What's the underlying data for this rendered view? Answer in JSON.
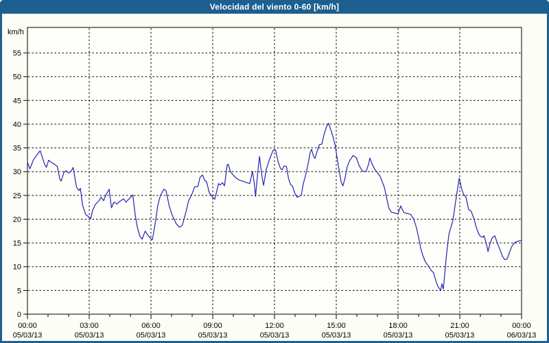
{
  "window": {
    "title": "Velocidad del viento 0-60 [km/h]"
  },
  "colors": {
    "titlebar": "#1d5f90",
    "window_border": "#1d5f90",
    "title_text": "#ffffff",
    "background": "#fcfdf5",
    "plot_bg": "#fefefa",
    "axis": "#000000",
    "grid": "#000000",
    "line": "#2222b2"
  },
  "chart_data": {
    "type": "line",
    "title": "Velocidad del viento 0-60 [km/h]",
    "ylabel": "km/h",
    "grid": {
      "style": "dashed",
      "color": "#000000"
    },
    "legend": "none",
    "y_axis": {
      "min": 0,
      "max": 60.36,
      "tick_step": 5,
      "tick_labels": [
        0,
        5,
        10,
        15,
        20,
        25,
        30,
        35,
        40,
        45,
        50,
        55
      ]
    },
    "x_axis": {
      "start_hour": 0,
      "end_hour": 24,
      "major_tick_hours": 3,
      "minor_tick_hours": 1,
      "major_labels": [
        {
          "time": "00:00",
          "date": "05/03/13"
        },
        {
          "time": "03:00",
          "date": "05/03/13"
        },
        {
          "time": "06:00",
          "date": "05/03/13"
        },
        {
          "time": "09:00",
          "date": "05/03/13"
        },
        {
          "time": "12:00",
          "date": "05/03/13"
        },
        {
          "time": "15:00",
          "date": "05/03/13"
        },
        {
          "time": "18:00",
          "date": "05/03/13"
        },
        {
          "time": "21:00",
          "date": "05/03/13"
        },
        {
          "time": "00:00",
          "date": "06/03/13"
        }
      ]
    },
    "series": [
      {
        "name": "Velocidad del viento [km/h]",
        "color": "#2222b2",
        "x_unit": "hours",
        "points": [
          [
            0.0,
            32.0
          ],
          [
            0.12,
            30.6
          ],
          [
            0.28,
            32.4
          ],
          [
            0.45,
            33.5
          ],
          [
            0.62,
            34.4
          ],
          [
            0.83,
            31.6
          ],
          [
            0.92,
            30.9
          ],
          [
            1.03,
            32.4
          ],
          [
            1.17,
            31.9
          ],
          [
            1.3,
            31.6
          ],
          [
            1.45,
            31.1
          ],
          [
            1.57,
            28.5
          ],
          [
            1.63,
            28.0
          ],
          [
            1.78,
            29.9
          ],
          [
            1.88,
            30.2
          ],
          [
            2.0,
            29.7
          ],
          [
            2.12,
            30.1
          ],
          [
            2.22,
            30.9
          ],
          [
            2.38,
            26.8
          ],
          [
            2.5,
            26.0
          ],
          [
            2.57,
            26.5
          ],
          [
            2.68,
            22.9
          ],
          [
            2.83,
            21.0
          ],
          [
            2.97,
            20.5
          ],
          [
            3.07,
            20.1
          ],
          [
            3.17,
            21.9
          ],
          [
            3.3,
            23.1
          ],
          [
            3.47,
            23.9
          ],
          [
            3.58,
            24.6
          ],
          [
            3.7,
            23.9
          ],
          [
            3.8,
            25.0
          ],
          [
            3.97,
            26.3
          ],
          [
            4.08,
            22.4
          ],
          [
            4.2,
            23.6
          ],
          [
            4.35,
            23.2
          ],
          [
            4.5,
            23.8
          ],
          [
            4.67,
            24.3
          ],
          [
            4.78,
            23.6
          ],
          [
            4.9,
            24.1
          ],
          [
            5.12,
            25.1
          ],
          [
            5.23,
            21.0
          ],
          [
            5.33,
            18.5
          ],
          [
            5.45,
            16.5
          ],
          [
            5.57,
            15.8
          ],
          [
            5.72,
            17.5
          ],
          [
            5.85,
            16.6
          ],
          [
            5.97,
            16.0
          ],
          [
            6.07,
            15.7
          ],
          [
            6.22,
            19.5
          ],
          [
            6.33,
            22.9
          ],
          [
            6.45,
            24.9
          ],
          [
            6.62,
            26.3
          ],
          [
            6.73,
            26.0
          ],
          [
            6.88,
            22.9
          ],
          [
            7.0,
            21.2
          ],
          [
            7.12,
            20.0
          ],
          [
            7.23,
            19.0
          ],
          [
            7.38,
            18.3
          ],
          [
            7.52,
            18.7
          ],
          [
            7.67,
            21.0
          ],
          [
            7.83,
            23.9
          ],
          [
            8.0,
            25.4
          ],
          [
            8.12,
            26.8
          ],
          [
            8.28,
            26.9
          ],
          [
            8.38,
            28.8
          ],
          [
            8.5,
            29.3
          ],
          [
            8.62,
            28.1
          ],
          [
            8.7,
            27.9
          ],
          [
            8.83,
            25.6
          ],
          [
            9.0,
            24.6
          ],
          [
            9.1,
            24.2
          ],
          [
            9.2,
            26.0
          ],
          [
            9.28,
            27.5
          ],
          [
            9.37,
            27.2
          ],
          [
            9.47,
            27.7
          ],
          [
            9.57,
            27.0
          ],
          [
            9.7,
            31.4
          ],
          [
            9.75,
            31.6
          ],
          [
            9.85,
            30.1
          ],
          [
            9.97,
            29.4
          ],
          [
            10.13,
            28.7
          ],
          [
            10.3,
            28.2
          ],
          [
            10.47,
            28.0
          ],
          [
            10.63,
            27.7
          ],
          [
            10.8,
            27.5
          ],
          [
            10.93,
            30.1
          ],
          [
            11.02,
            27.5
          ],
          [
            11.08,
            24.8
          ],
          [
            11.18,
            29.6
          ],
          [
            11.27,
            33.2
          ],
          [
            11.4,
            28.8
          ],
          [
            11.47,
            27.1
          ],
          [
            11.6,
            30.5
          ],
          [
            11.75,
            32.5
          ],
          [
            11.93,
            34.5
          ],
          [
            12.05,
            34.6
          ],
          [
            12.18,
            32.0
          ],
          [
            12.3,
            30.6
          ],
          [
            12.37,
            30.4
          ],
          [
            12.47,
            31.2
          ],
          [
            12.58,
            31.1
          ],
          [
            12.68,
            28.6
          ],
          [
            12.77,
            27.4
          ],
          [
            12.88,
            26.9
          ],
          [
            13.0,
            25.3
          ],
          [
            13.1,
            24.6
          ],
          [
            13.2,
            24.8
          ],
          [
            13.3,
            25.1
          ],
          [
            13.4,
            27.5
          ],
          [
            13.52,
            29.4
          ],
          [
            13.63,
            31.6
          ],
          [
            13.73,
            34.0
          ],
          [
            13.8,
            34.7
          ],
          [
            13.9,
            33.2
          ],
          [
            13.97,
            32.8
          ],
          [
            14.07,
            34.3
          ],
          [
            14.18,
            35.7
          ],
          [
            14.3,
            35.8
          ],
          [
            14.4,
            37.7
          ],
          [
            14.52,
            39.4
          ],
          [
            14.62,
            40.2
          ],
          [
            14.73,
            38.9
          ],
          [
            14.85,
            37.2
          ],
          [
            14.95,
            35.5
          ],
          [
            15.05,
            32.6
          ],
          [
            15.15,
            30.0
          ],
          [
            15.23,
            28.0
          ],
          [
            15.32,
            27.0
          ],
          [
            15.42,
            28.5
          ],
          [
            15.53,
            31.0
          ],
          [
            15.65,
            32.3
          ],
          [
            15.82,
            33.4
          ],
          [
            15.97,
            33.0
          ],
          [
            16.12,
            31.2
          ],
          [
            16.28,
            30.1
          ],
          [
            16.45,
            30.0
          ],
          [
            16.57,
            31.6
          ],
          [
            16.63,
            32.9
          ],
          [
            16.77,
            31.3
          ],
          [
            16.9,
            30.3
          ],
          [
            17.0,
            29.8
          ],
          [
            17.13,
            29.0
          ],
          [
            17.33,
            26.8
          ],
          [
            17.45,
            24.4
          ],
          [
            17.55,
            22.4
          ],
          [
            17.67,
            21.5
          ],
          [
            17.83,
            21.3
          ],
          [
            18.0,
            21.1
          ],
          [
            18.13,
            22.8
          ],
          [
            18.28,
            21.4
          ],
          [
            18.45,
            21.2
          ],
          [
            18.62,
            21.0
          ],
          [
            18.75,
            20.1
          ],
          [
            18.87,
            18.6
          ],
          [
            19.0,
            16.2
          ],
          [
            19.1,
            13.9
          ],
          [
            19.2,
            12.4
          ],
          [
            19.33,
            11.0
          ],
          [
            19.47,
            10.2
          ],
          [
            19.6,
            9.3
          ],
          [
            19.73,
            8.7
          ],
          [
            19.83,
            7.1
          ],
          [
            19.93,
            5.9
          ],
          [
            20.07,
            5.0
          ],
          [
            20.13,
            6.4
          ],
          [
            20.2,
            5.3
          ],
          [
            20.28,
            9.0
          ],
          [
            20.35,
            12.3
          ],
          [
            20.42,
            15.0
          ],
          [
            20.48,
            17.0
          ],
          [
            20.57,
            18.3
          ],
          [
            20.65,
            19.5
          ],
          [
            20.72,
            21.3
          ],
          [
            20.78,
            23.2
          ],
          [
            20.85,
            25.2
          ],
          [
            20.92,
            27.2
          ],
          [
            20.97,
            28.6
          ],
          [
            21.0,
            28.2
          ],
          [
            21.1,
            26.2
          ],
          [
            21.18,
            25.3
          ],
          [
            21.3,
            24.6
          ],
          [
            21.43,
            22.0
          ],
          [
            21.55,
            21.7
          ],
          [
            21.68,
            20.2
          ],
          [
            21.8,
            18.3
          ],
          [
            21.92,
            16.9
          ],
          [
            22.0,
            16.4
          ],
          [
            22.12,
            16.2
          ],
          [
            22.18,
            16.5
          ],
          [
            22.3,
            14.7
          ],
          [
            22.37,
            13.2
          ],
          [
            22.47,
            14.9
          ],
          [
            22.58,
            16.1
          ],
          [
            22.7,
            16.5
          ],
          [
            22.83,
            14.9
          ],
          [
            22.97,
            13.4
          ],
          [
            23.07,
            12.2
          ],
          [
            23.18,
            11.5
          ],
          [
            23.3,
            11.6
          ],
          [
            23.42,
            13.1
          ],
          [
            23.52,
            14.2
          ],
          [
            23.63,
            14.9
          ],
          [
            23.73,
            15.2
          ],
          [
            23.85,
            15.4
          ],
          [
            23.97,
            15.5
          ],
          [
            24.0,
            15.5
          ]
        ]
      }
    ]
  }
}
